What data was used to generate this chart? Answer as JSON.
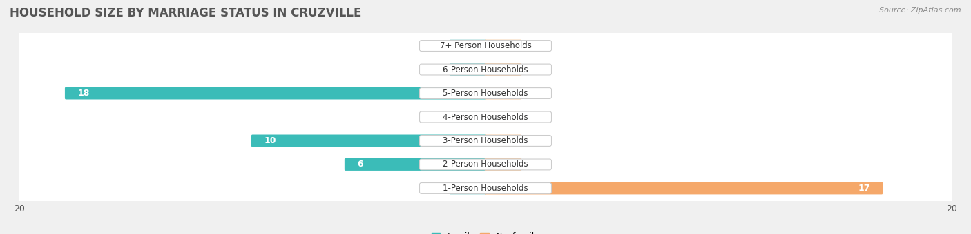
{
  "title": "HOUSEHOLD SIZE BY MARRIAGE STATUS IN CRUZVILLE",
  "source": "Source: ZipAtlas.com",
  "categories": [
    "7+ Person Households",
    "6-Person Households",
    "5-Person Households",
    "4-Person Households",
    "3-Person Households",
    "2-Person Households",
    "1-Person Households"
  ],
  "family_values": [
    0,
    0,
    18,
    0,
    10,
    6,
    0
  ],
  "nonfamily_values": [
    0,
    0,
    0,
    0,
    0,
    0,
    17
  ],
  "family_color": "#3BBCB8",
  "family_color_light": "#8DCFCF",
  "nonfamily_color": "#F5A86A",
  "nonfamily_color_light": "#F5C9A0",
  "xlim": 20,
  "zero_stub": 1.5,
  "title_fontsize": 12,
  "source_fontsize": 8,
  "label_fontsize": 9,
  "value_fontsize": 9,
  "tick_fontsize": 9,
  "row_bg": "#ececec",
  "bar_row_bg": "#f7f7f7",
  "fig_bg": "#f0f0f0"
}
